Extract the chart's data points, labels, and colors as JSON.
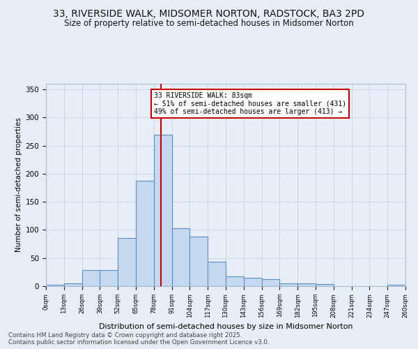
{
  "title": "33, RIVERSIDE WALK, MIDSOMER NORTON, RADSTOCK, BA3 2PD",
  "subtitle": "Size of property relative to semi-detached houses in Midsomer Norton",
  "xlabel": "Distribution of semi-detached houses by size in Midsomer Norton",
  "ylabel": "Number of semi-detached properties",
  "bin_edges": [
    0,
    13,
    26,
    39,
    52,
    65,
    78,
    91,
    104,
    117,
    130,
    143,
    156,
    169,
    182,
    195,
    208,
    221,
    234,
    247,
    260
  ],
  "bar_heights": [
    2,
    5,
    29,
    29,
    86,
    188,
    270,
    103,
    88,
    44,
    18,
    15,
    12,
    5,
    5,
    4,
    0,
    0,
    0,
    2
  ],
  "bar_color": "#c5d8f0",
  "bar_edge_color": "#5b8ec4",
  "reference_line_x": 83,
  "reference_line_color": "#cc0000",
  "annotation_text": "33 RIVERSIDE WALK: 83sqm\n← 51% of semi-detached houses are smaller (431)\n49% of semi-detached houses are larger (413) →",
  "annotation_box_color": "white",
  "annotation_box_edge_color": "#cc0000",
  "ylim": [
    0,
    360
  ],
  "yticks": [
    0,
    50,
    100,
    150,
    200,
    250,
    300,
    350
  ],
  "background_color": "#e8eef8",
  "grid_color": "#d0d8e8",
  "title_fontsize": 10,
  "subtitle_fontsize": 8.5,
  "footnote": "Contains HM Land Registry data © Crown copyright and database right 2025.\nContains public sector information licensed under the Open Government Licence v3.0.",
  "footnote_fontsize": 6.2
}
